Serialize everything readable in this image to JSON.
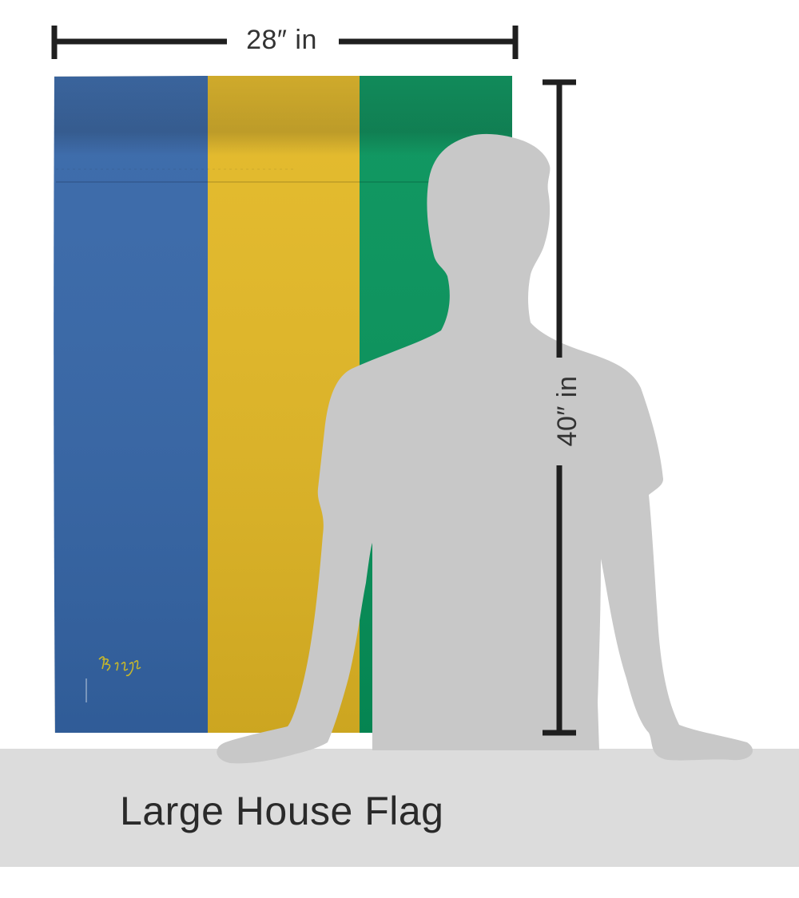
{
  "dimensions": {
    "width_label": "28″ in",
    "height_label": "40″ in"
  },
  "flag": {
    "stripe_colors": [
      "#3566a8",
      "#e3b824",
      "#05935a"
    ],
    "brand_signature": "Breeze"
  },
  "caption": "Large House Flag",
  "colors": {
    "silhouette": "#c8c8c8",
    "table": "#dcdcdc",
    "measure_line": "#1f1f1f"
  }
}
